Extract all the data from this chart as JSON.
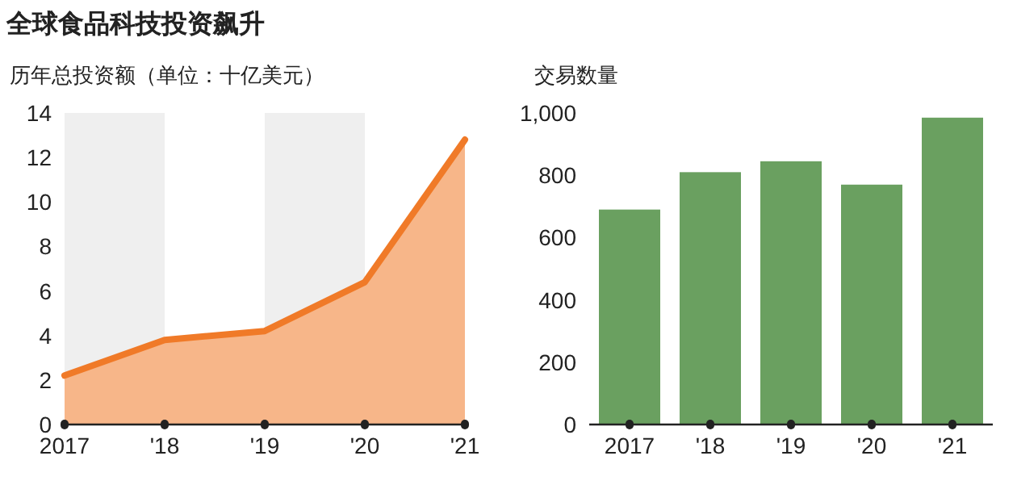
{
  "chart_data": [
    {
      "type": "area",
      "title": "全球食品科技投资飙升",
      "ylabel": "历年总投资额（单位：十亿美元）",
      "x": [
        2017,
        2018,
        2019,
        2020,
        2021
      ],
      "values": [
        2.2,
        3.8,
        4.2,
        6.4,
        12.8
      ],
      "color": "#f07a28",
      "xlim": [
        2017,
        2021
      ],
      "xticks": [
        2017,
        {
          "value": 2018,
          "label": "'18"
        },
        {
          "value": 2019,
          "label": "'19"
        },
        {
          "value": 2020,
          "label": "'20"
        },
        {
          "value": 2021,
          "label": "'21"
        }
      ],
      "ylim": [
        0,
        14
      ],
      "yticks": [
        0,
        2,
        4,
        6,
        8,
        10,
        12,
        14
      ],
      "bands": [
        {
          "axis": "x",
          "from": 2017,
          "to": 2018,
          "color": "#efefef"
        },
        {
          "axis": "x",
          "from": 2019,
          "to": 2020,
          "color": "#efefef"
        }
      ]
    },
    {
      "type": "bar",
      "ylabel": "交易数量",
      "categories": [
        "2017",
        "'18",
        "'19",
        "'20",
        "'21"
      ],
      "values": [
        690,
        810,
        845,
        770,
        985
      ],
      "color": "#6aa060",
      "ylim": [
        0,
        1000
      ],
      "yticks": [
        0,
        200,
        400,
        600,
        800,
        {
          "value": 1000,
          "label": "1,000"
        }
      ]
    }
  ]
}
